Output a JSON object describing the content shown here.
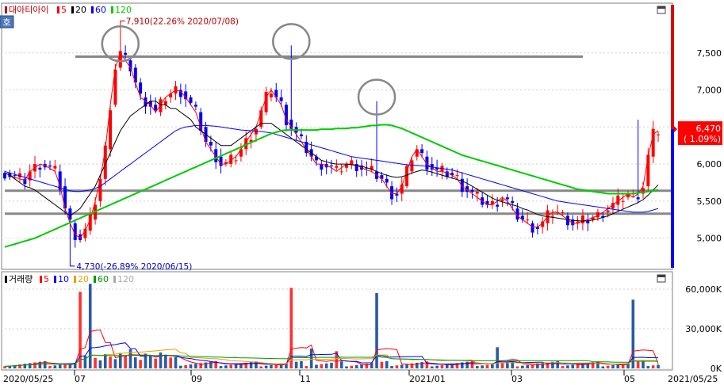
{
  "price_panel": {
    "legend": [
      {
        "label": "대아티아이",
        "color": "#c00000"
      },
      {
        "label": "5",
        "color": "#ff0000"
      },
      {
        "label": "20",
        "color": "#000000"
      },
      {
        "label": "60",
        "color": "#0000ff"
      },
      {
        "label": "120",
        "color": "#00cc00"
      }
    ],
    "side_button": "호"
  },
  "volume_panel": {
    "legend": [
      {
        "label": "거래량",
        "color": "#000000"
      },
      {
        "label": "5",
        "color": "#ff0000"
      },
      {
        "label": "10",
        "color": "#0000ff"
      },
      {
        "label": "20",
        "color": "#e8a000"
      },
      {
        "label": "60",
        "color": "#009900"
      },
      {
        "label": "120",
        "color": "#aaaaaa"
      }
    ]
  },
  "chart_data": [
    {
      "type": "candlestick",
      "title": "대아티아이",
      "y_ticks": [
        "7,500",
        "7,000",
        "6,500",
        "6,000",
        "5,500",
        "5,000"
      ],
      "y_tick_values": [
        7500,
        7000,
        6500,
        6000,
        5500,
        5000
      ],
      "ylim": [
        4600,
        8150
      ],
      "x_ticks": [
        "2020/05/25",
        "07",
        "09",
        "11",
        "2021/01",
        "03",
        "05",
        "2021/05/25"
      ],
      "annotations": [
        {
          "text": "7,910(22.26% 2020/07/08)",
          "value": 7910
        },
        {
          "text": "4,730(-26.89% 2020/06/15)",
          "value": 4730
        }
      ],
      "last_price": {
        "value": 6470,
        "label": "6,470",
        "change": "( 1.09%)"
      },
      "horizontal_lines": [
        7450,
        5640,
        5330
      ],
      "circled_peaks": [
        7570,
        7600,
        6850
      ],
      "series": [
        {
          "name": "5",
          "color": "#ff0000",
          "values": [
            5880,
            5850,
            5820,
            5800,
            5780,
            5900,
            5950,
            6000,
            5980,
            5940,
            5900,
            5700,
            5400,
            5200,
            5050,
            5000,
            5100,
            5250,
            5500,
            5800,
            6200,
            6800,
            7300,
            7500,
            7400,
            7300,
            7100,
            6900,
            6850,
            6800,
            6700,
            6800,
            6900,
            6950,
            7000,
            6980,
            6900,
            6800,
            6700,
            6500,
            6300,
            6200,
            6100,
            6000,
            6000,
            6050,
            6100,
            6200,
            6300,
            6400,
            6500,
            6700,
            6900,
            7000,
            6900,
            6800,
            6600,
            6500,
            6400,
            6300,
            6200,
            6100,
            6000,
            6000,
            5980,
            5950,
            5900,
            5950,
            6000,
            6000,
            5980,
            5950,
            5920,
            5900,
            5850,
            5800,
            5700,
            5600,
            5600,
            5700,
            5900,
            6100,
            6200,
            6100,
            6000,
            5950,
            5900,
            5900,
            5880,
            5850,
            5800,
            5700,
            5650,
            5600,
            5550,
            5500,
            5450,
            5450,
            5500,
            5550,
            5500,
            5400,
            5300,
            5250,
            5200,
            5150,
            5150,
            5200,
            5300,
            5350,
            5350,
            5300,
            5250,
            5200,
            5200,
            5230,
            5250,
            5280,
            5300,
            5350,
            5400,
            5450,
            5500,
            5550,
            5600,
            5550,
            5600,
            5700,
            6100,
            6400,
            6450
          ]
        },
        {
          "name": "20",
          "color": "#000000",
          "values": [
            5880,
            5850,
            5800,
            5750,
            5700,
            5680,
            5650,
            5600,
            5550,
            5500,
            5450,
            5400,
            5350,
            5300,
            5350,
            5400,
            5500,
            5600,
            5700,
            5850,
            6000,
            6150,
            6300,
            6450,
            6550,
            6650,
            6700,
            6750,
            6800,
            6850,
            6850,
            6800,
            6800,
            6750,
            6750,
            6700,
            6650,
            6600,
            6500,
            6450,
            6400,
            6350,
            6300,
            6250,
            6250,
            6250,
            6300,
            6350,
            6400,
            6450,
            6500,
            6550,
            6550,
            6550,
            6500,
            6450,
            6400,
            6350,
            6300,
            6250,
            6200,
            6150,
            6100,
            6050,
            6030,
            6010,
            6000,
            6000,
            6000,
            5990,
            5980,
            5970,
            5950,
            5930,
            5900,
            5870,
            5850,
            5830,
            5820,
            5830,
            5850,
            5880,
            5900,
            5920,
            5910,
            5890,
            5870,
            5850,
            5830,
            5810,
            5790,
            5770,
            5740,
            5700,
            5660,
            5620,
            5580,
            5540,
            5510,
            5490,
            5470,
            5450,
            5430,
            5400,
            5380,
            5350,
            5320,
            5300,
            5290,
            5280,
            5270,
            5260,
            5250,
            5240,
            5235,
            5230,
            5235,
            5245,
            5260,
            5280,
            5300,
            5330,
            5360,
            5390,
            5420,
            5450,
            5480,
            5520,
            5580,
            5650,
            5720
          ]
        },
        {
          "name": "60",
          "color": "#0000ff",
          "values": [
            5900,
            5880,
            5860,
            5840,
            5820,
            5800,
            5780,
            5760,
            5740,
            5720,
            5700,
            5680,
            5660,
            5640,
            5630,
            5630,
            5640,
            5650,
            5670,
            5700,
            5750,
            5800,
            5850,
            5900,
            5950,
            6000,
            6050,
            6100,
            6150,
            6200,
            6250,
            6300,
            6350,
            6400,
            6450,
            6480,
            6500,
            6510,
            6520,
            6520,
            6520,
            6515,
            6510,
            6500,
            6490,
            6480,
            6470,
            6460,
            6455,
            6450,
            6445,
            6440,
            6430,
            6420,
            6400,
            6380,
            6360,
            6340,
            6320,
            6300,
            6280,
            6260,
            6240,
            6220,
            6200,
            6180,
            6160,
            6140,
            6120,
            6100,
            6090,
            6080,
            6070,
            6060,
            6050,
            6040,
            6030,
            6020,
            6010,
            6000,
            5990,
            5985,
            5980,
            5975,
            5970,
            5960,
            5950,
            5940,
            5930,
            5920,
            5900,
            5880,
            5860,
            5840,
            5820,
            5800,
            5780,
            5760,
            5740,
            5720,
            5700,
            5680,
            5660,
            5640,
            5620,
            5600,
            5580,
            5560,
            5540,
            5520,
            5500,
            5490,
            5480,
            5470,
            5460,
            5450,
            5440,
            5430,
            5420,
            5410,
            5400,
            5390,
            5380,
            5370,
            5360,
            5350,
            5350,
            5350,
            5360,
            5380,
            5400
          ]
        },
        {
          "name": "120",
          "color": "#00cc00",
          "values": [
            4880,
            4900,
            4920,
            4940,
            4960,
            4980,
            5000,
            5030,
            5060,
            5090,
            5120,
            5150,
            5180,
            5210,
            5240,
            5270,
            5300,
            5330,
            5360,
            5390,
            5420,
            5450,
            5480,
            5510,
            5540,
            5570,
            5600,
            5630,
            5660,
            5690,
            5720,
            5750,
            5780,
            5810,
            5840,
            5870,
            5900,
            5930,
            5960,
            5990,
            6020,
            6050,
            6080,
            6110,
            6140,
            6170,
            6200,
            6230,
            6260,
            6290,
            6320,
            6350,
            6380,
            6410,
            6430,
            6450,
            6460,
            6460,
            6460,
            6460,
            6460,
            6460,
            6460,
            6470,
            6470,
            6470,
            6480,
            6480,
            6480,
            6490,
            6490,
            6500,
            6510,
            6520,
            6520,
            6530,
            6530,
            6520,
            6500,
            6480,
            6450,
            6420,
            6390,
            6360,
            6330,
            6300,
            6270,
            6240,
            6210,
            6180,
            6150,
            6120,
            6100,
            6080,
            6060,
            6040,
            6020,
            6000,
            5980,
            5960,
            5940,
            5920,
            5900,
            5880,
            5860,
            5840,
            5820,
            5800,
            5780,
            5760,
            5740,
            5720,
            5700,
            5680,
            5660,
            5650,
            5640,
            5630,
            5620,
            5610,
            5600,
            5600,
            5600,
            5600,
            5600,
            5600,
            5610,
            5620,
            5630,
            5640,
            5650
          ]
        }
      ]
    },
    {
      "type": "bar",
      "title": "거래량",
      "y_ticks": [
        "60,000K",
        "30,000K",
        "0K"
      ],
      "y_tick_values": [
        60000,
        30000,
        0
      ],
      "ylim": [
        0,
        72000
      ],
      "x_ticks": [
        "2020/05/25",
        "07",
        "09",
        "11",
        "2021/01",
        "03",
        "05",
        "2021/05/25"
      ],
      "spikes": [
        58000,
        64000,
        61000,
        57000,
        15000,
        13000,
        16000,
        52000
      ]
    }
  ]
}
